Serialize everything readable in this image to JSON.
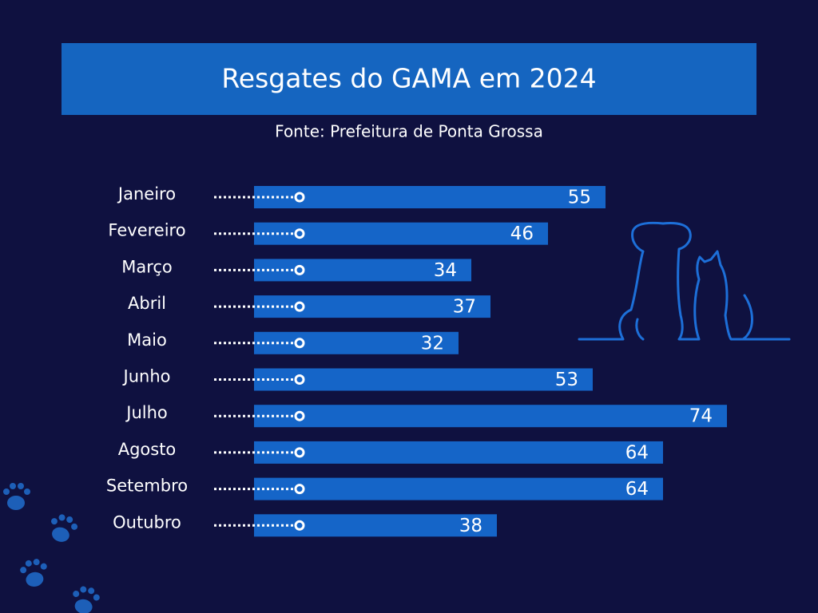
{
  "chart_data": {
    "type": "bar",
    "orientation": "horizontal",
    "title": "Resgates do GAMA em 2024",
    "subtitle": "Fonte: Prefeitura de Ponta Grossa",
    "categories": [
      "Janeiro",
      "Fevereiro",
      "Março",
      "Abril",
      "Maio",
      "Junho",
      "Julho",
      "Agosto",
      "Setembro",
      "Outubro"
    ],
    "values": [
      55,
      46,
      34,
      37,
      32,
      53,
      74,
      64,
      64,
      38
    ],
    "color": "#1565c8"
  }
}
